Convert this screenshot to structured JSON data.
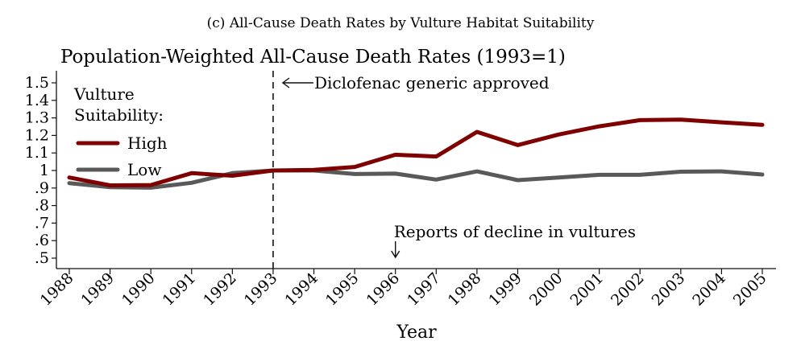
{
  "supertitle": "(c) All-Cause Death Rates by Vulture Habitat Suitability",
  "chart_data": {
    "type": "line",
    "title": "Population-Weighted All-Cause Death Rates (1993=1)",
    "xlabel": "Year",
    "ylabel": "",
    "x": [
      "1988",
      "1989",
      "1990",
      "1991",
      "1992",
      "1993",
      "1994",
      "1995",
      "1996",
      "1997",
      "1998",
      "1999",
      "2000",
      "2001",
      "2002",
      "2003",
      "2004",
      "2005"
    ],
    "ylim": [
      0.5,
      1.5
    ],
    "yticks": [
      ".5",
      ".6",
      ".7",
      ".8",
      ".9",
      "1",
      "1.1",
      "1.2",
      "1.3",
      "1.4",
      "1.5"
    ],
    "legend_title": "Vulture Suitability:",
    "legend_position": "top-left",
    "grid": false,
    "series": [
      {
        "name": "High",
        "color": "#7f0000",
        "values": [
          0.96,
          0.915,
          0.917,
          0.985,
          0.97,
          1.0,
          1.003,
          1.02,
          1.09,
          1.08,
          1.22,
          1.145,
          1.205,
          1.252,
          1.287,
          1.29,
          1.275,
          1.26
        ]
      },
      {
        "name": "Low",
        "color": "#595959",
        "values": [
          0.928,
          0.905,
          0.902,
          0.93,
          0.985,
          1.0,
          1.0,
          0.98,
          0.982,
          0.948,
          0.995,
          0.945,
          0.96,
          0.975,
          0.975,
          0.993,
          0.995,
          0.977
        ]
      }
    ],
    "vline": {
      "x": "1993",
      "style": "dashed"
    },
    "annotations": [
      {
        "text": "Diclofenac generic approved",
        "x": "1993",
        "arrow": "left"
      },
      {
        "text": "Reports of decline in vultures",
        "x": "1996",
        "arrow": "down"
      }
    ]
  }
}
